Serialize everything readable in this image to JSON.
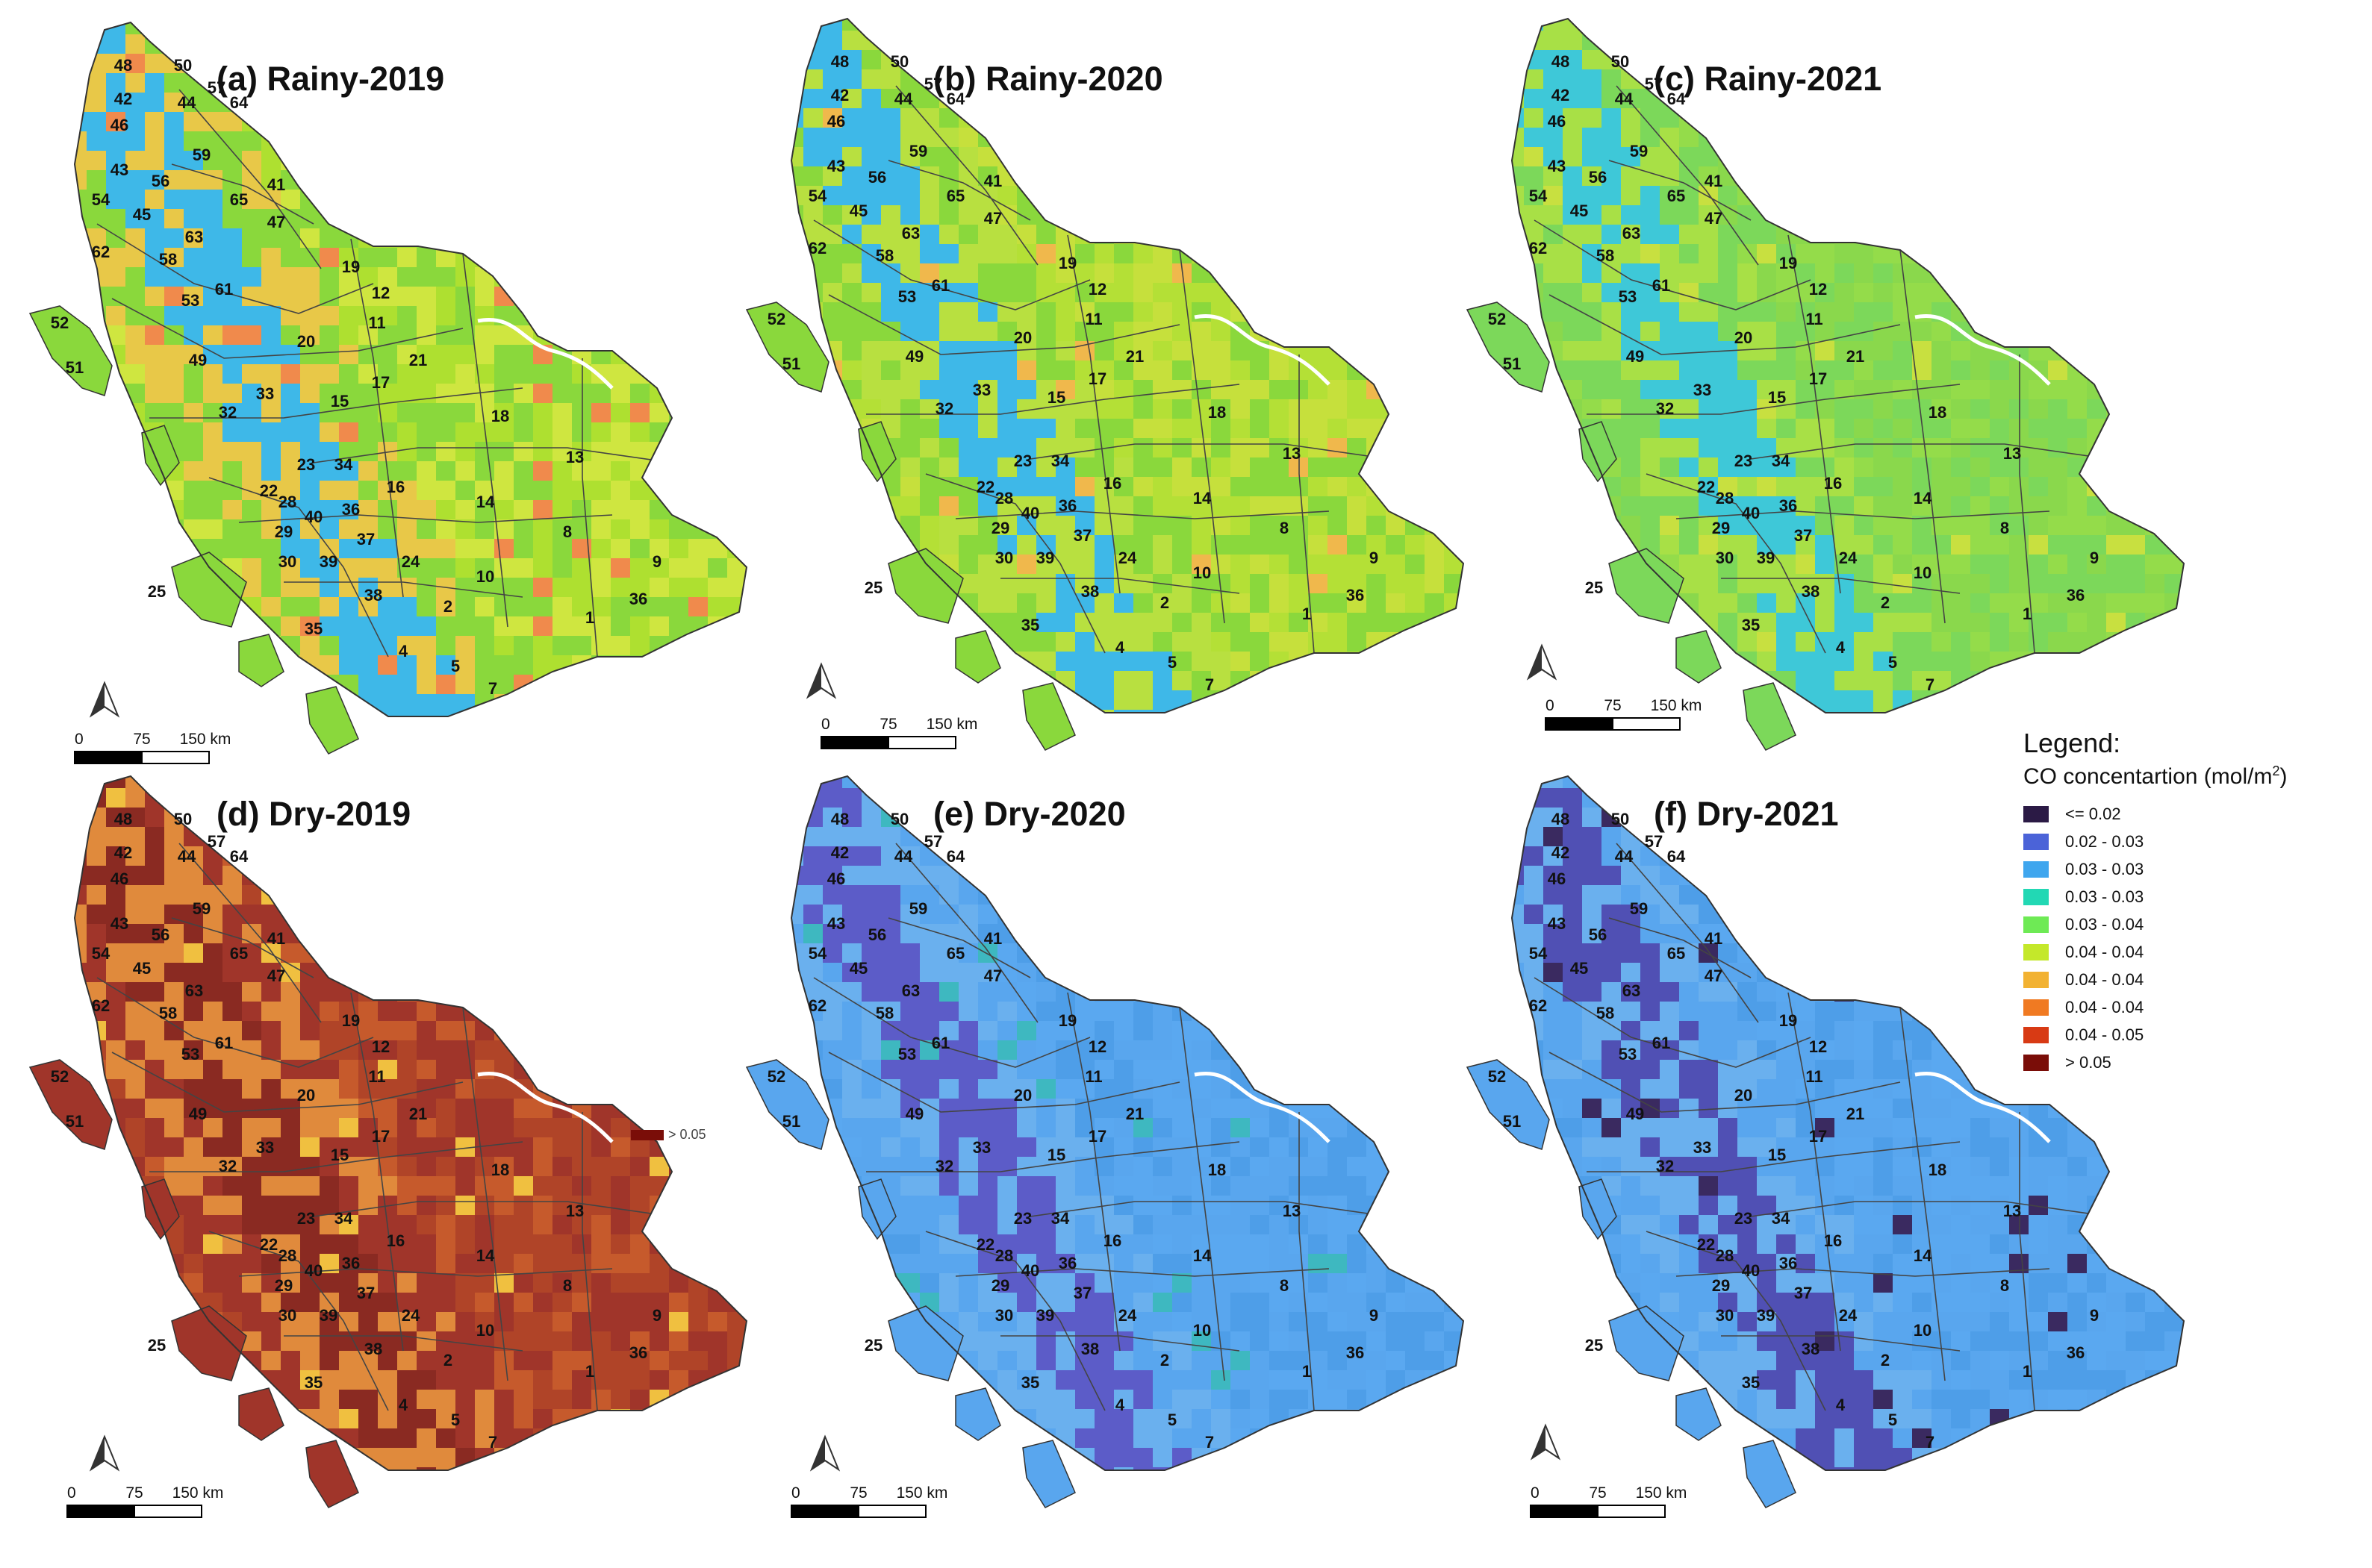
{
  "panels": [
    {
      "title": "(a) Rainy-2019",
      "palette": [
        "#8ad83c",
        "#aee030",
        "#cfe640",
        "#e8c848"
      ],
      "dark": "#3eb8e8",
      "accent": "#f08a4c"
    },
    {
      "title": "(b) Rainy-2020",
      "palette": [
        "#8ad83c",
        "#b4e036",
        "#c6e03c",
        "#b8e040"
      ],
      "dark": "#3eb8e8",
      "accent": "#f0b84c"
    },
    {
      "title": "(c) Rainy-2021",
      "palette": [
        "#7cd85a",
        "#8ad84c",
        "#94dc4a",
        "#a8e046"
      ],
      "dark": "#3ec8d8",
      "accent": "#c8e040"
    },
    {
      "title": "(d) Dry-2019",
      "palette": [
        "#a0352a",
        "#b04428",
        "#c65a2c",
        "#e08a3c"
      ],
      "dark": "#8a2a22",
      "accent": "#f0c040"
    },
    {
      "title": "(e) Dry-2020",
      "palette": [
        "#59a6ee",
        "#5aa8f0",
        "#4e9ee8",
        "#6ab0ee"
      ],
      "dark": "#5c5cc8",
      "accent": "#3eb8c0"
    },
    {
      "title": "(f) Dry-2021",
      "palette": [
        "#59a6ee",
        "#5aa8f0",
        "#4e9ee8",
        "#6ab0ee"
      ],
      "dark": "#5050b4",
      "accent": "#3a2a60"
    }
  ],
  "scale_bar": {
    "t0": "0",
    "t1": "75",
    "t2": "150 km"
  },
  "region_numbers": [
    "48",
    "50",
    "42",
    "57",
    "64",
    "44",
    "46",
    "59",
    "41",
    "43",
    "56",
    "54",
    "65",
    "45",
    "63",
    "47",
    "62",
    "58",
    "19",
    "12",
    "53",
    "61",
    "11",
    "20",
    "21",
    "52",
    "51",
    "17",
    "49",
    "33",
    "15",
    "18",
    "32",
    "23",
    "34",
    "13",
    "22",
    "28",
    "16",
    "14",
    "40",
    "36",
    "29",
    "37",
    "8",
    "9",
    "30",
    "39",
    "24",
    "10",
    "38",
    "2",
    "36",
    "1",
    "35",
    "4",
    "5",
    "7",
    "25"
  ],
  "stray_label": "> 0.05",
  "legend": {
    "title": "Legend:",
    "subtitle": "CO concentartion (mol/m",
    "subtitle_sup": "2",
    "subtitle_end": ")",
    "items": [
      {
        "label": "<= 0.02",
        "color": "#2b1a45"
      },
      {
        "label": "0.02 - 0.03",
        "color": "#4b63d8"
      },
      {
        "label": "0.03 - 0.03",
        "color": "#3fa6ee"
      },
      {
        "label": "0.03 - 0.03",
        "color": "#22d8b4"
      },
      {
        "label": "0.03 - 0.04",
        "color": "#6eea55"
      },
      {
        "label": "0.04 - 0.04",
        "color": "#c4e82a"
      },
      {
        "label": "0.04 - 0.04",
        "color": "#f2b232"
      },
      {
        "label": "0.04 - 0.04",
        "color": "#f07a22"
      },
      {
        "label": "0.04 - 0.05",
        "color": "#d83a14"
      },
      {
        "label": "> 0.05",
        "color": "#7a0d08"
      }
    ]
  }
}
